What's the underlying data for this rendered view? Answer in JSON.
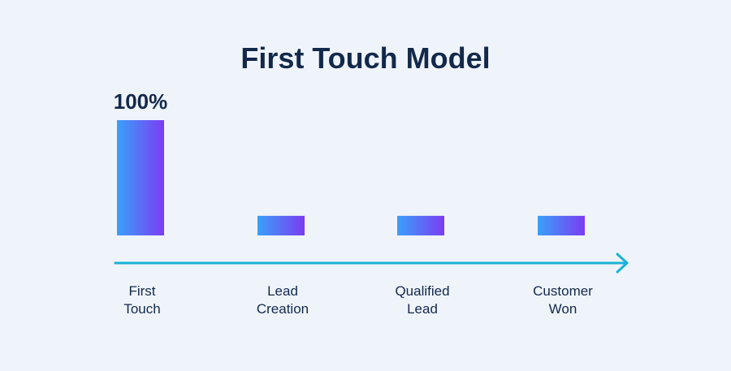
{
  "chart_data": {
    "type": "bar",
    "title": "First Touch Model",
    "categories": [
      "First Touch",
      "Lead Creation",
      "Qualified Lead",
      "Customer Won"
    ],
    "category_lines": [
      [
        "First",
        "Touch"
      ],
      [
        "Lead",
        "Creation"
      ],
      [
        "Qualified",
        "Lead"
      ],
      [
        "Customer",
        "Won"
      ]
    ],
    "values": [
      100,
      17,
      17,
      17
    ],
    "data_labels": [
      "100%",
      "",
      "",
      ""
    ],
    "ylim": [
      0,
      100
    ],
    "xlabel": "",
    "ylabel": "",
    "grid": false,
    "colors": {
      "bar_gradient_start": "#3aa0fa",
      "bar_gradient_end": "#7b3cf2",
      "axis_arrow": "#1ab1d6",
      "text": "#13294b",
      "background": "#eff4fb"
    }
  }
}
